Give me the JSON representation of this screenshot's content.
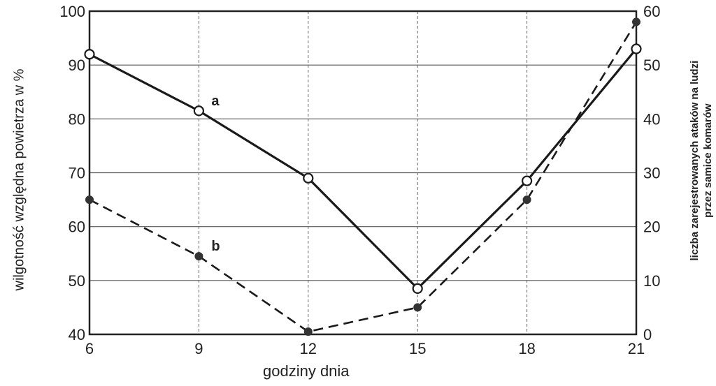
{
  "chart_data": {
    "type": "line",
    "title": "",
    "xlabel": "godziny dnia",
    "ylabel_left": "wilgotność względna powietrza w %",
    "ylabel_right_line1": "liczba zarejestrowanych ataków na ludzi",
    "ylabel_right_line2": "przez samice komarów",
    "x": [
      6,
      9,
      12,
      15,
      18,
      21
    ],
    "x_ticks": [
      "6",
      "9",
      "12",
      "15",
      "18",
      "21"
    ],
    "ylim_left": [
      40,
      100
    ],
    "y_ticks_left": [
      "40",
      "50",
      "60",
      "70",
      "80",
      "90",
      "100"
    ],
    "ylim_right": [
      0,
      60
    ],
    "y_ticks_right": [
      "0",
      "10",
      "20",
      "30",
      "40",
      "50",
      "60"
    ],
    "grid": true,
    "series": [
      {
        "name": "a",
        "axis": "left",
        "style": "solid",
        "marker": "open-circle",
        "values": [
          92,
          81.5,
          69,
          48.5,
          68.5,
          93
        ]
      },
      {
        "name": "b",
        "axis": "right",
        "style": "dashed",
        "marker": "filled-circle",
        "values": [
          25,
          14.5,
          0.5,
          5,
          25,
          58
        ]
      }
    ]
  }
}
